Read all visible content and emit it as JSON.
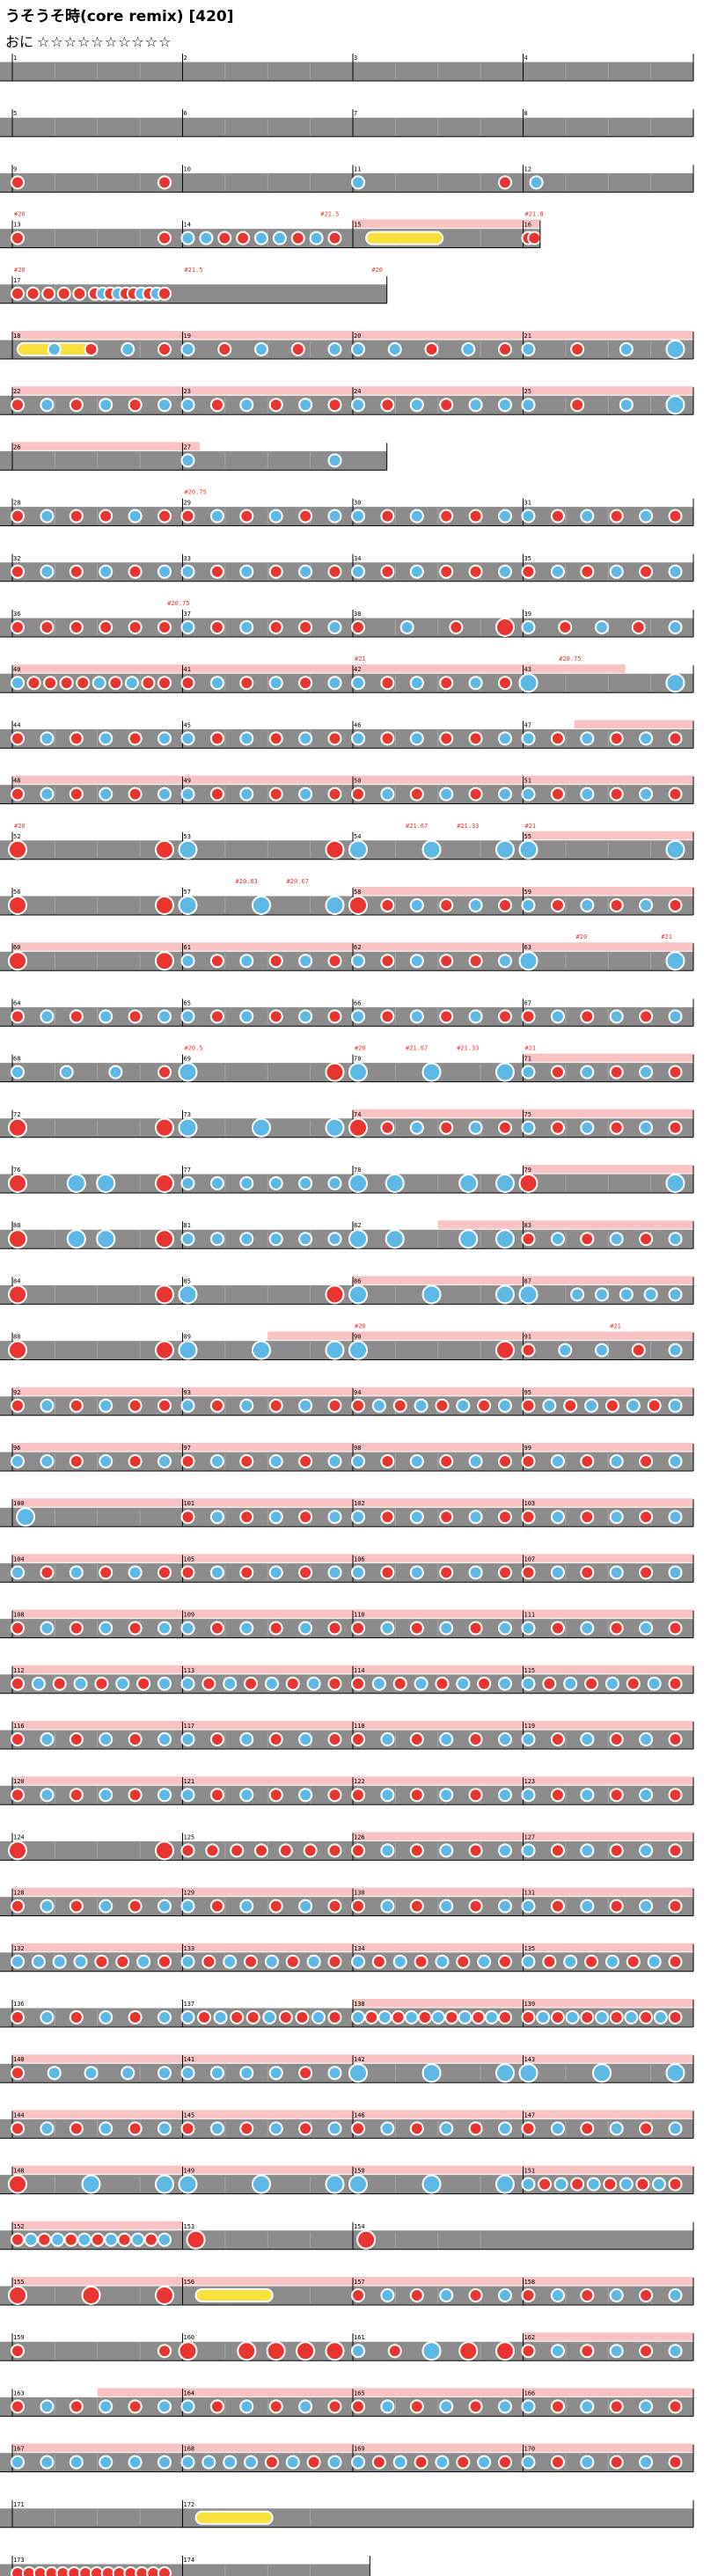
{
  "song": {
    "title": "うそうそ時(core remix) [420]",
    "difficulty_label": "おに",
    "stars": "☆☆☆☆☆☆☆☆☆☆"
  },
  "colors": {
    "don": "#e8352f",
    "ka": "#5cb9e6",
    "drumroll": "#f7e03a",
    "gogo": "#f9c3c3",
    "lane": "#8c8c8c",
    "line": "#000000",
    "label": "#e8352f"
  },
  "rows": [
    {
      "m": [
        1,
        2,
        3,
        4
      ],
      "len": 4,
      "p": [
        "e",
        "e",
        "e",
        "e"
      ]
    },
    {
      "m": [
        5,
        6,
        7,
        8
      ],
      "len": 4,
      "p": [
        "e",
        "e",
        "e",
        "e"
      ]
    },
    {
      "m": [
        9,
        10,
        11,
        12
      ],
      "len": 4,
      "p": [
        "dd",
        "",
        "kd",
        "k"
      ]
    },
    {
      "m": [
        13,
        14,
        15,
        16
      ],
      "len": 3.1,
      "p": [
        "dd",
        "kkddkkdkd",
        "Y",
        "dd"
      ],
      "g": [
        2,
        3.1
      ]
    },
    {
      "m": [
        17
      ],
      "len": 2.2,
      "p": [
        "d.d.d.d.d.dkdkddkdkd"
      ]
    },
    {
      "m": [
        18,
        19,
        20,
        21
      ],
      "len": 4,
      "p": [
        "Ykdkd",
        "kdkdk",
        "kkdkd",
        "kdkK"
      ],
      "g": [
        0,
        4
      ]
    },
    {
      "m": [
        22,
        23,
        24,
        25
      ],
      "len": 4,
      "p": [
        "dkdkdk",
        "kdkdkd",
        "kdkdkk",
        "kdkK"
      ],
      "g": [
        0,
        4
      ]
    },
    {
      "m": [
        26,
        27
      ],
      "len": 2.2,
      "p": [
        "",
        "k.k"
      ],
      "g": [
        0,
        1.1
      ]
    },
    {
      "m": [
        28,
        29,
        30,
        31
      ],
      "len": 4,
      "p": [
        "dkddkd",
        "dkdkdk",
        "kdkddk",
        "kdkdkd"
      ]
    },
    {
      "m": [
        32,
        33,
        34,
        35
      ],
      "len": 4,
      "p": [
        "dkdkdk",
        "kdkdkd",
        "kdkddk",
        "dkdkdk"
      ]
    },
    {
      "m": [
        36,
        37,
        38,
        39
      ],
      "len": 4,
      "p": [
        "dddddd",
        "kdkddk",
        "dkdD",
        "kdkdk"
      ]
    },
    {
      "m": [
        40,
        41,
        42,
        43
      ],
      "len": 4,
      "p": [
        "kddddkdkdd",
        "dkdkdk",
        "kdkdkd",
        "K.K"
      ],
      "g": [
        0,
        3.6
      ]
    },
    {
      "m": [
        44,
        45,
        46,
        47
      ],
      "len": 4,
      "p": [
        "dkdkdk",
        "kdkdkd",
        "kdkddk",
        "kdkdkd"
      ],
      "g": [
        3.3,
        4
      ]
    },
    {
      "m": [
        48,
        49,
        50,
        51
      ],
      "len": 4,
      "p": [
        "dkdkdk",
        "kdkdkd",
        "dkdkdk",
        "kdkdkd"
      ],
      "g": [
        0,
        4
      ]
    },
    {
      "m": [
        52,
        53,
        54,
        55
      ],
      "len": 4,
      "p": [
        "D.D",
        "K.D",
        "K.K.K",
        "K.K"
      ],
      "g": [
        3,
        4
      ]
    },
    {
      "m": [
        56,
        57,
        58,
        59
      ],
      "len": 4,
      "p": [
        "D.D",
        "K.K.K",
        "Ddkdkd",
        "kdkdkd"
      ],
      "g": [
        2,
        4
      ]
    },
    {
      "m": [
        60,
        61,
        62,
        63
      ],
      "len": 4,
      "p": [
        "D.D",
        "kdkdkd",
        "kdkddk",
        "K.K"
      ],
      "g": [
        0,
        4
      ]
    },
    {
      "m": [
        64,
        65,
        66,
        67
      ],
      "len": 4,
      "p": [
        "dkdkdk",
        "kdkdkd",
        "kdkdkd",
        "dkdkdk"
      ]
    },
    {
      "m": [
        68,
        69,
        70,
        71
      ],
      "len": 4,
      "p": [
        "kkkd",
        "K.D",
        "K.K.K",
        "kdkdkd"
      ],
      "g": [
        3,
        4
      ]
    },
    {
      "m": [
        72,
        73,
        74,
        75
      ],
      "len": 4,
      "p": [
        "D.D",
        "K.K.K",
        "Ddkdkd",
        "kdkdkd"
      ],
      "g": [
        2,
        4
      ]
    },
    {
      "m": [
        76,
        77,
        78,
        79
      ],
      "len": 4,
      "p": [
        "D.KK.D",
        "kkkkkk",
        "KK.KK",
        "D.K"
      ],
      "g": [
        3,
        4
      ]
    },
    {
      "m": [
        80,
        81,
        82,
        83
      ],
      "len": 4,
      "p": [
        "D.KK.D",
        "kkkkkk",
        "KK.KK",
        "dkdkdk"
      ],
      "g": [
        2.5,
        4
      ]
    },
    {
      "m": [
        84,
        85,
        86,
        87
      ],
      "len": 4,
      "p": [
        "D.D",
        "K.D",
        "K.K.K",
        "K.kkkkk"
      ],
      "g": [
        2,
        4
      ]
    },
    {
      "m": [
        88,
        89,
        90,
        91
      ],
      "len": 4,
      "p": [
        "D.D",
        "K.K.K",
        "K.D",
        "dkkdk"
      ],
      "g": [
        1.5,
        4
      ]
    },
    {
      "m": [
        92,
        93,
        94,
        95
      ],
      "len": 4,
      "p": [
        "dkdkdd",
        "kdkdkd",
        "dkdkdkdk",
        "dkdkdkdk"
      ],
      "g": [
        0,
        4
      ]
    },
    {
      "m": [
        96,
        97,
        98,
        99
      ],
      "len": 4,
      "p": [
        "kkdkdk",
        "dkdkdk",
        "kdkdkd",
        "dkdkdk"
      ],
      "g": [
        0,
        4
      ]
    },
    {
      "m": [
        100,
        101,
        102,
        103
      ],
      "len": 4,
      "p": [
        "K",
        "dkdkdk",
        "kdkdkd",
        "dkdkdk"
      ],
      "g": [
        0,
        4
      ]
    },
    {
      "m": [
        104,
        105,
        106,
        107
      ],
      "len": 4,
      "p": [
        "kdkdkd",
        "dkdkdk",
        "kdkdkd",
        "dkdkdk"
      ],
      "g": [
        0,
        4
      ]
    },
    {
      "m": [
        108,
        109,
        110,
        111
      ],
      "len": 4,
      "p": [
        "dkdkdk",
        "kdkdkd",
        "dkdkdk",
        "kdkdkd"
      ],
      "g": [
        0,
        4
      ]
    },
    {
      "m": [
        112,
        113,
        114,
        115
      ],
      "len": 4,
      "p": [
        "dkdkdkdk",
        "kdkdkdkd",
        "dkdkdkdk",
        "kdkdkdkd"
      ],
      "g": [
        0,
        4
      ]
    },
    {
      "m": [
        116,
        117,
        118,
        119
      ],
      "len": 4,
      "p": [
        "dkdkdk",
        "kdkdkd",
        "dkdkdk",
        "kdkdkd"
      ],
      "g": [
        0,
        4
      ]
    },
    {
      "m": [
        120,
        121,
        122,
        123
      ],
      "len": 4,
      "p": [
        "dkdkdk",
        "kdkdkd",
        "dkdkdk",
        "kdkdkd"
      ],
      "g": [
        0,
        4
      ]
    },
    {
      "m": [
        124,
        125,
        126,
        127
      ],
      "len": 4,
      "p": [
        "D.D",
        "ddddddd",
        "dkdkdk",
        "kdkdkd"
      ],
      "g": [
        2,
        4
      ]
    },
    {
      "m": [
        128,
        129,
        130,
        131
      ],
      "len": 4,
      "p": [
        "dkdkdk",
        "kdkdkd",
        "dkdkdk",
        "kdkdkd"
      ],
      "g": [
        0,
        4
      ]
    },
    {
      "m": [
        132,
        133,
        134,
        135
      ],
      "len": 4,
      "p": [
        "kkkkddkd",
        "kdkdkdkd",
        "kdkdkdkd",
        "kdkdkdkd"
      ],
      "g": [
        0,
        4
      ]
    },
    {
      "m": [
        136,
        137,
        138,
        139
      ],
      "len": 4,
      "p": [
        "dkdkdk",
        "kdkddkddkd",
        "kdkdkdkdkdkd",
        "dkdkdkdkdkd"
      ],
      "g": [
        2,
        4
      ]
    },
    {
      "m": [
        140,
        141,
        142,
        143
      ],
      "len": 4,
      "p": [
        "dkkkk",
        "kkkkdk",
        "K.K.K",
        "K.K.K"
      ],
      "g": [
        0,
        4
      ]
    },
    {
      "m": [
        144,
        145,
        146,
        147
      ],
      "len": 4,
      "p": [
        "dkdkdk",
        "dkdkdk",
        "dkdkdk",
        "dkdkdk"
      ],
      "g": [
        0,
        4
      ]
    },
    {
      "m": [
        148,
        149,
        150,
        151
      ],
      "len": 4,
      "p": [
        "D.K.K",
        "K.K.K",
        "K.K.K",
        "kdkdkdkdkd"
      ],
      "g": [
        0,
        4
      ]
    },
    {
      "m": [
        152,
        153,
        154
      ],
      "len": 4,
      "p": [
        "dkdkdkdkdkdk",
        "D",
        "D"
      ],
      "g": [
        0,
        1
      ]
    },
    {
      "m": [
        155,
        156,
        157,
        158
      ],
      "len": 4,
      "p": [
        "D.D.D",
        "Y",
        "dkdkdk",
        "dkdkdk"
      ],
      "g": [
        0,
        4
      ]
    },
    {
      "m": [
        159,
        160,
        161,
        162
      ],
      "len": 4,
      "p": [
        "dd",
        "D.DDDD",
        "kdKDD",
        "dkdkdk"
      ],
      "g": [
        3,
        4
      ]
    },
    {
      "m": [
        163,
        164,
        165,
        166
      ],
      "len": 4,
      "p": [
        "dkdkdk",
        "kdkdkd",
        "dkdkdk",
        "kdkdkd"
      ],
      "g": [
        0.5,
        4
      ]
    },
    {
      "m": [
        167,
        168,
        169,
        170
      ],
      "len": 4,
      "p": [
        "kkkkkk",
        "kkkkdkdk",
        "kdkdkdkd",
        "kdkdkd"
      ],
      "g": [
        0,
        4
      ]
    },
    {
      "m": [
        171,
        172
      ],
      "len": 4,
      "p": [
        "",
        "Y"
      ]
    },
    {
      "m": [
        173,
        174
      ],
      "len": 2.1,
      "p": [
        "dddddddddddddd",
        ""
      ]
    }
  ],
  "measure_labels": [
    {
      "row": 3,
      "m": 0,
      "t": "#20"
    },
    {
      "row": 3,
      "m": 1.8,
      "t": "#21.5"
    },
    {
      "row": 3,
      "m": 3,
      "t": "#21.8"
    },
    {
      "row": 4,
      "m": 0,
      "t": "#20"
    },
    {
      "row": 4,
      "m": 1,
      "t": "#21.5"
    },
    {
      "row": 4,
      "m": 2.1,
      "t": "#20"
    },
    {
      "row": 8,
      "m": 1,
      "t": "#20.75"
    },
    {
      "row": 10,
      "m": 0.9,
      "t": "#20.75"
    },
    {
      "row": 11,
      "m": 2,
      "t": "#21"
    },
    {
      "row": 11,
      "m": 3.2,
      "t": "#20.75"
    },
    {
      "row": 14,
      "m": 0,
      "t": "#20"
    },
    {
      "row": 14,
      "m": 2.3,
      "t": "#21.67"
    },
    {
      "row": 14,
      "m": 2.6,
      "t": "#21.33"
    },
    {
      "row": 14,
      "m": 3,
      "t": "#21"
    },
    {
      "row": 15,
      "m": 1.3,
      "t": "#20.83"
    },
    {
      "row": 15,
      "m": 1.6,
      "t": "#20.67"
    },
    {
      "row": 16,
      "m": 3.3,
      "t": "#20"
    },
    {
      "row": 16,
      "m": 3.8,
      "t": "#21"
    },
    {
      "row": 18,
      "m": 1,
      "t": "#20.5"
    },
    {
      "row": 18,
      "m": 2,
      "t": "#20"
    },
    {
      "row": 18,
      "m": 2.3,
      "t": "#21.67"
    },
    {
      "row": 18,
      "m": 2.6,
      "t": "#21.33"
    },
    {
      "row": 18,
      "m": 3,
      "t": "#21"
    },
    {
      "row": 23,
      "m": 2,
      "t": "#20"
    },
    {
      "row": 23,
      "m": 3.5,
      "t": "#21"
    }
  ]
}
